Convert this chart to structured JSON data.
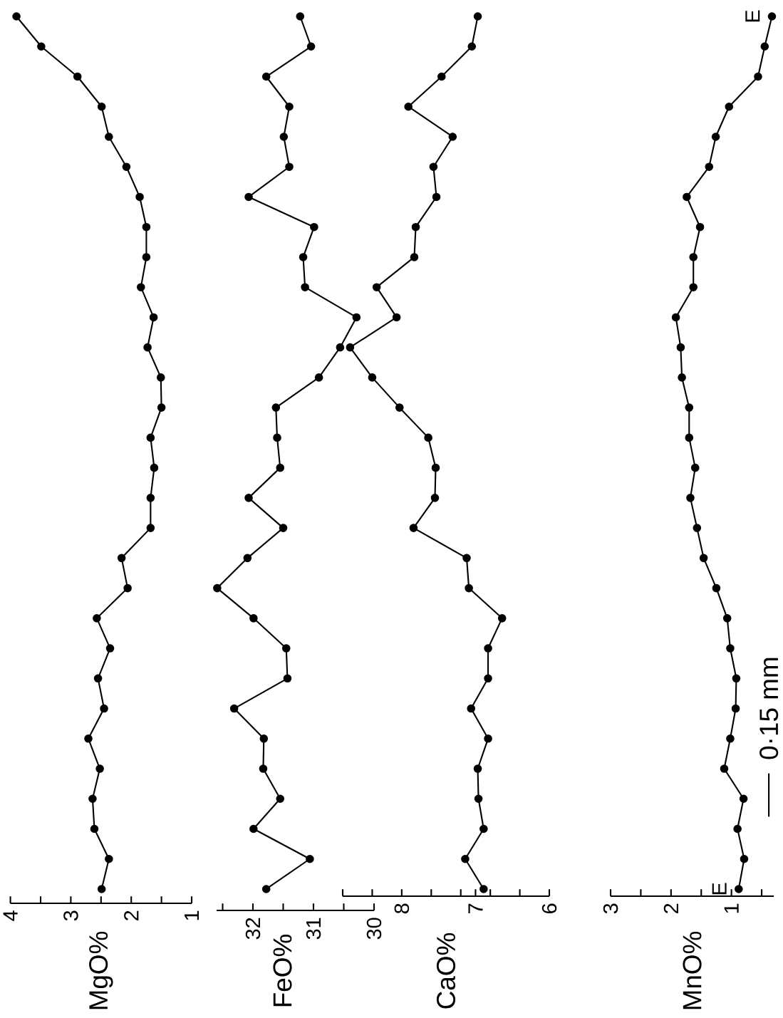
{
  "chart_data": [
    {
      "type": "line",
      "orientation": "horizontal",
      "ylabel": "MgO%",
      "categories": [
        null,
        null,
        null,
        null,
        null,
        null,
        null,
        null,
        null,
        null,
        null,
        null,
        null,
        null,
        null,
        null,
        null,
        null,
        null,
        null,
        null,
        null,
        null,
        null,
        null,
        null,
        null,
        null,
        null,
        null
      ],
      "series": [
        {
          "color": "#000000",
          "values": [
            3.9,
            3.49,
            2.89,
            2.49,
            2.37,
            2.08,
            1.86,
            1.75,
            1.75,
            1.84,
            1.63,
            1.73,
            1.51,
            1.5,
            1.68,
            1.62,
            1.68,
            1.68,
            2.16,
            2.06,
            2.57,
            2.35,
            2.55,
            2.45,
            2.71,
            2.52,
            2.64,
            2.61,
            2.37,
            2.49
          ]
        }
      ],
      "xlim": [
        4,
        1
      ],
      "xticks": [
        4,
        {
          "value": 3.5,
          "label": null
        },
        3,
        {
          "value": 2.5,
          "label": null
        },
        2,
        {
          "value": 1.5,
          "label": null
        },
        1
      ],
      "marker": "circle",
      "line_style": "solid"
    },
    {
      "type": "line",
      "orientation": "horizontal",
      "ylabel": "FeO%",
      "categories": [
        null,
        null,
        null,
        null,
        null,
        null,
        null,
        null,
        null,
        null,
        null,
        null,
        null,
        null,
        null,
        null,
        null,
        null,
        null,
        null,
        null,
        null,
        null,
        null,
        null,
        null,
        null,
        null,
        null,
        null
      ],
      "series": [
        {
          "color": "#000000",
          "values": [
            31.22,
            31.04,
            31.78,
            31.4,
            31.49,
            31.4,
            32.07,
            30.99,
            31.17,
            31.14,
            30.29,
            30.56,
            30.91,
            31.62,
            31.6,
            31.55,
            32.07,
            31.5,
            32.09,
            32.59,
            31.99,
            31.45,
            31.43,
            32.31,
            31.82,
            31.83,
            31.55,
            31.99,
            31.06,
            31.78
          ]
        }
      ],
      "xlim": [
        32.6,
        30
      ],
      "xticks": [
        {
          "value": 32.5,
          "label": null
        },
        32,
        {
          "value": 31.5,
          "label": null
        },
        31,
        {
          "value": 30.5,
          "label": null
        },
        30
      ],
      "marker": "circle",
      "line_style": "solid"
    },
    {
      "type": "line",
      "orientation": "horizontal",
      "ylabel": "CaO%",
      "categories": [
        null,
        null,
        null,
        null,
        null,
        null,
        null,
        null,
        null,
        null,
        null,
        null,
        null,
        null,
        null,
        null,
        null,
        null,
        null,
        null,
        null,
        null,
        null,
        null,
        null,
        null,
        null,
        null,
        null,
        null
      ],
      "series": [
        {
          "color": "#000000",
          "values": [
            6.97,
            7.05,
            7.46,
            7.91,
            7.31,
            7.57,
            7.53,
            7.81,
            7.83,
            8.34,
            8.07,
            8.7,
            8.4,
            8.03,
            7.64,
            7.54,
            7.55,
            7.84,
            7.12,
            7.09,
            6.64,
            6.83,
            6.83,
            7.06,
            6.83,
            6.97,
            6.96,
            6.89,
            7.14,
            6.89
          ]
        }
      ],
      "xlim": [
        8.8,
        6
      ],
      "xticks": [
        {
          "value": 8.8,
          "label": null
        },
        {
          "value": 8.4,
          "label": null
        },
        8,
        {
          "value": 7.6,
          "label": null
        },
        {
          "value": 7.2,
          "label": null
        },
        7,
        {
          "value": 6.8,
          "label": null
        },
        {
          "value": 6.4,
          "label": null
        },
        6
      ],
      "marker": "circle",
      "line_style": "solid"
    },
    {
      "type": "line",
      "orientation": "horizontal",
      "ylabel": "MnO%",
      "categories": [
        null,
        null,
        null,
        null,
        null,
        null,
        null,
        null,
        null,
        null,
        null,
        null,
        null,
        null,
        null,
        null,
        null,
        null,
        null,
        null,
        null,
        null,
        null,
        null,
        null,
        null,
        null,
        null,
        null,
        null
      ],
      "series": [
        {
          "color": "#000000",
          "values": [
            0.33,
            0.45,
            0.56,
            1.04,
            1.26,
            1.37,
            1.74,
            1.52,
            1.63,
            1.63,
            1.92,
            1.84,
            1.82,
            1.7,
            1.7,
            1.6,
            1.68,
            1.57,
            1.46,
            1.25,
            1.07,
            1.02,
            0.92,
            0.93,
            1.02,
            1.12,
            0.8,
            0.9,
            0.79,
            0.88
          ]
        }
      ],
      "xlim": [
        3,
        0.3
      ],
      "xticks": [
        3,
        {
          "value": 2.5,
          "label": null
        },
        2,
        {
          "value": 1.5,
          "label": null
        },
        1,
        {
          "value": 0.5,
          "label": null
        }
      ],
      "marker": "circle",
      "line_style": "solid",
      "annotations": [
        "E",
        "E",
        "0·15 mm"
      ]
    }
  ]
}
